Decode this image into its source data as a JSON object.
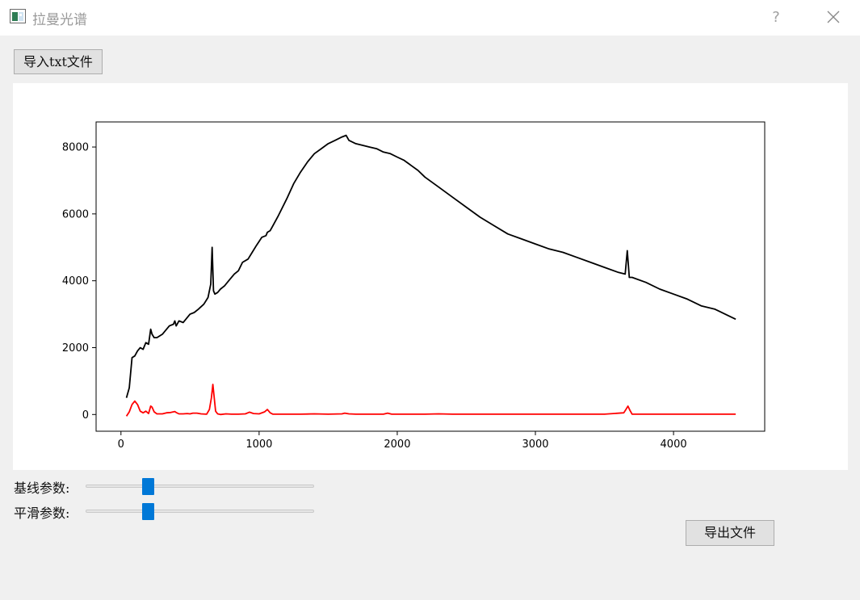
{
  "window": {
    "title": "拉曼光谱",
    "help": "?"
  },
  "toolbar": {
    "import_label": "导入txt文件",
    "export_label": "导出文件"
  },
  "sliders": [
    {
      "label": "基线参数:",
      "value": 0.26
    },
    {
      "label": "平滑参数:",
      "value": 0.26
    }
  ],
  "colors": {
    "raw": "#000000",
    "corrected": "#ff0000",
    "slider": "#0078d7"
  },
  "chart_data": {
    "type": "line",
    "xlim": [
      -180,
      4660
    ],
    "ylim": [
      -500,
      8750
    ],
    "x_ticks": [
      0,
      1000,
      2000,
      3000,
      4000
    ],
    "y_ticks": [
      0,
      2000,
      4000,
      6000,
      8000
    ],
    "grid": false,
    "series": [
      {
        "color": "#000000",
        "x": [
          40,
          60,
          80,
          100,
          120,
          140,
          160,
          180,
          200,
          215,
          225,
          240,
          260,
          280,
          300,
          320,
          350,
          380,
          390,
          400,
          420,
          450,
          480,
          500,
          530,
          560,
          600,
          630,
          650,
          660,
          670,
          680,
          700,
          720,
          750,
          780,
          820,
          850,
          880,
          920,
          950,
          980,
          1020,
          1050,
          1060,
          1080,
          1100,
          1140,
          1200,
          1250,
          1300,
          1350,
          1400,
          1450,
          1500,
          1550,
          1600,
          1630,
          1650,
          1700,
          1750,
          1800,
          1850,
          1900,
          1950,
          2000,
          2050,
          2100,
          2150,
          2200,
          2300,
          2400,
          2500,
          2600,
          2700,
          2800,
          2900,
          3000,
          3100,
          3200,
          3300,
          3400,
          3500,
          3600,
          3650,
          3665,
          3680,
          3700,
          3800,
          3900,
          4000,
          4100,
          4200,
          4300,
          4400,
          4450
        ],
        "y": [
          500,
          800,
          1700,
          1750,
          1900,
          2000,
          1950,
          2150,
          2100,
          2550,
          2400,
          2300,
          2300,
          2350,
          2400,
          2500,
          2650,
          2700,
          2800,
          2650,
          2800,
          2750,
          2900,
          3000,
          3050,
          3150,
          3300,
          3500,
          3900,
          5000,
          3700,
          3600,
          3650,
          3750,
          3850,
          4000,
          4200,
          4300,
          4550,
          4650,
          4850,
          5050,
          5300,
          5350,
          5450,
          5500,
          5650,
          5950,
          6450,
          6900,
          7250,
          7550,
          7800,
          7950,
          8100,
          8200,
          8300,
          8350,
          8200,
          8100,
          8050,
          8000,
          7950,
          7850,
          7800,
          7700,
          7600,
          7450,
          7300,
          7100,
          6800,
          6500,
          6200,
          5900,
          5650,
          5400,
          5250,
          5100,
          4950,
          4850,
          4700,
          4550,
          4400,
          4250,
          4200,
          4900,
          4100,
          4100,
          3950,
          3750,
          3600,
          3450,
          3250,
          3150,
          2950,
          2850
        ]
      },
      {
        "color": "#ff0000",
        "x": [
          40,
          60,
          80,
          100,
          120,
          140,
          160,
          180,
          200,
          215,
          225,
          240,
          260,
          280,
          300,
          330,
          360,
          380,
          390,
          400,
          420,
          450,
          480,
          500,
          520,
          550,
          580,
          620,
          640,
          655,
          665,
          675,
          685,
          700,
          720,
          760,
          800,
          850,
          900,
          930,
          960,
          1000,
          1040,
          1060,
          1080,
          1100,
          1200,
          1300,
          1400,
          1500,
          1600,
          1620,
          1650,
          1700,
          1800,
          1900,
          1930,
          1960,
          2000,
          2100,
          2200,
          2300,
          2400,
          2500,
          2700,
          2900,
          3100,
          3300,
          3500,
          3640,
          3655,
          3670,
          3685,
          3700,
          3800,
          4000,
          4200,
          4450
        ],
        "y": [
          -50,
          80,
          300,
          400,
          300,
          100,
          50,
          100,
          30,
          250,
          220,
          80,
          20,
          20,
          20,
          50,
          60,
          80,
          90,
          60,
          20,
          20,
          30,
          20,
          40,
          40,
          20,
          10,
          150,
          500,
          900,
          500,
          100,
          20,
          0,
          20,
          10,
          10,
          20,
          70,
          30,
          20,
          80,
          150,
          50,
          10,
          10,
          10,
          20,
          10,
          20,
          40,
          20,
          10,
          10,
          10,
          40,
          10,
          10,
          10,
          10,
          20,
          10,
          10,
          10,
          10,
          10,
          10,
          10,
          50,
          150,
          250,
          120,
          10,
          10,
          10,
          10,
          10
        ]
      }
    ]
  }
}
